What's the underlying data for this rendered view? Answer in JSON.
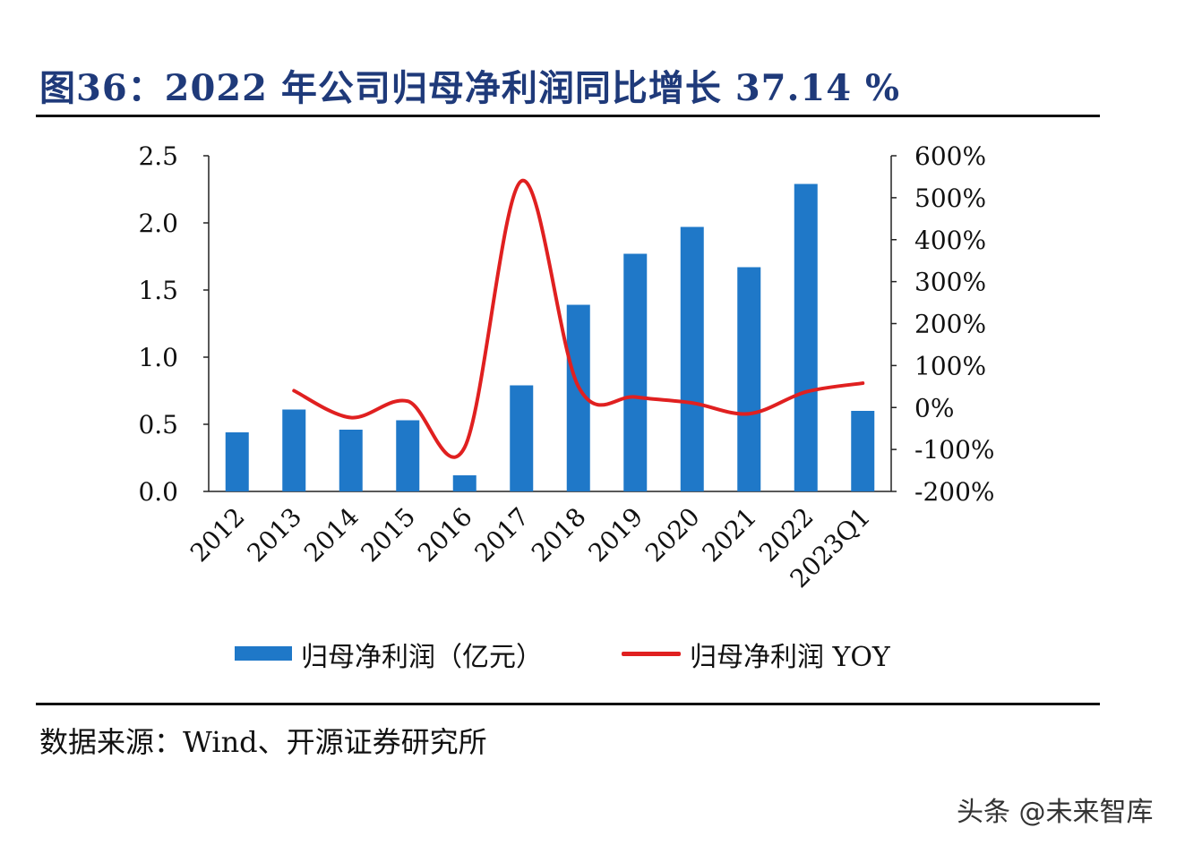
{
  "figure": {
    "title": "图36：2022 年公司归母净利润同比增长 37.14 %",
    "source": "数据来源：Wind、开源证券研究所",
    "watermark": "头条 @未来智库"
  },
  "legend": {
    "bar_label": "归母净利润（亿元）",
    "line_label": "归母净利润 YOY"
  },
  "colors": {
    "bar": "#1f78c8",
    "line": "#e02020",
    "title": "#1f3a7a"
  },
  "chart_data": {
    "type": "bar",
    "categories": [
      "2012",
      "2013",
      "2014",
      "2015",
      "2016",
      "2017",
      "2018",
      "2019",
      "2020",
      "2021",
      "2022",
      "2023Q1"
    ],
    "series": [
      {
        "name": "归母净利润（亿元）",
        "type": "bar",
        "axis": "left",
        "values": [
          0.44,
          0.61,
          0.46,
          0.53,
          0.12,
          0.79,
          1.39,
          1.77,
          1.97,
          1.67,
          2.29,
          0.6
        ]
      },
      {
        "name": "归母净利润 YOY",
        "type": "line",
        "axis": "right",
        "values": [
          null,
          40,
          -24,
          15,
          -95,
          540,
          50,
          25,
          11,
          -15,
          37.14,
          58
        ]
      }
    ],
    "y_left": {
      "lim": [
        0,
        2.5
      ],
      "ticks": [
        0,
        0.5,
        1.0,
        1.5,
        2.0,
        2.5
      ],
      "tick_labels": [
        "0.0",
        "0.5",
        "1.0",
        "1.5",
        "2.0",
        "2.5"
      ]
    },
    "y_right": {
      "lim": [
        -200,
        600
      ],
      "ticks": [
        -200,
        -100,
        0,
        100,
        200,
        300,
        400,
        500,
        600
      ],
      "tick_labels": [
        "-200%",
        "-100%",
        "0%",
        "100%",
        "200%",
        "300%",
        "400%",
        "500%",
        "600%"
      ]
    },
    "grid": false,
    "legend_position": "bottom"
  }
}
